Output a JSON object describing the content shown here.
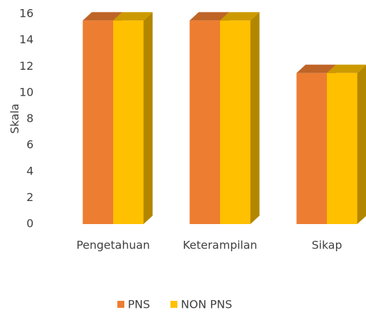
{
  "chart_data": {
    "type": "bar3d",
    "ylabel": "Skala",
    "categories": [
      "Pengetahuan",
      "Keterampilan",
      "Sikap"
    ],
    "series": [
      {
        "name": "PNS",
        "color": "#ED7D31",
        "values": [
          15.5,
          15.5,
          11.5
        ]
      },
      {
        "name": "NON PNS",
        "color": "#FFC000",
        "values": [
          15.5,
          15.5,
          11.5
        ]
      }
    ],
    "ylim": [
      0,
      16
    ],
    "yticks": [
      0,
      2,
      4,
      6,
      8,
      10,
      12,
      14,
      16
    ],
    "grid": false,
    "legend": "bottom"
  }
}
